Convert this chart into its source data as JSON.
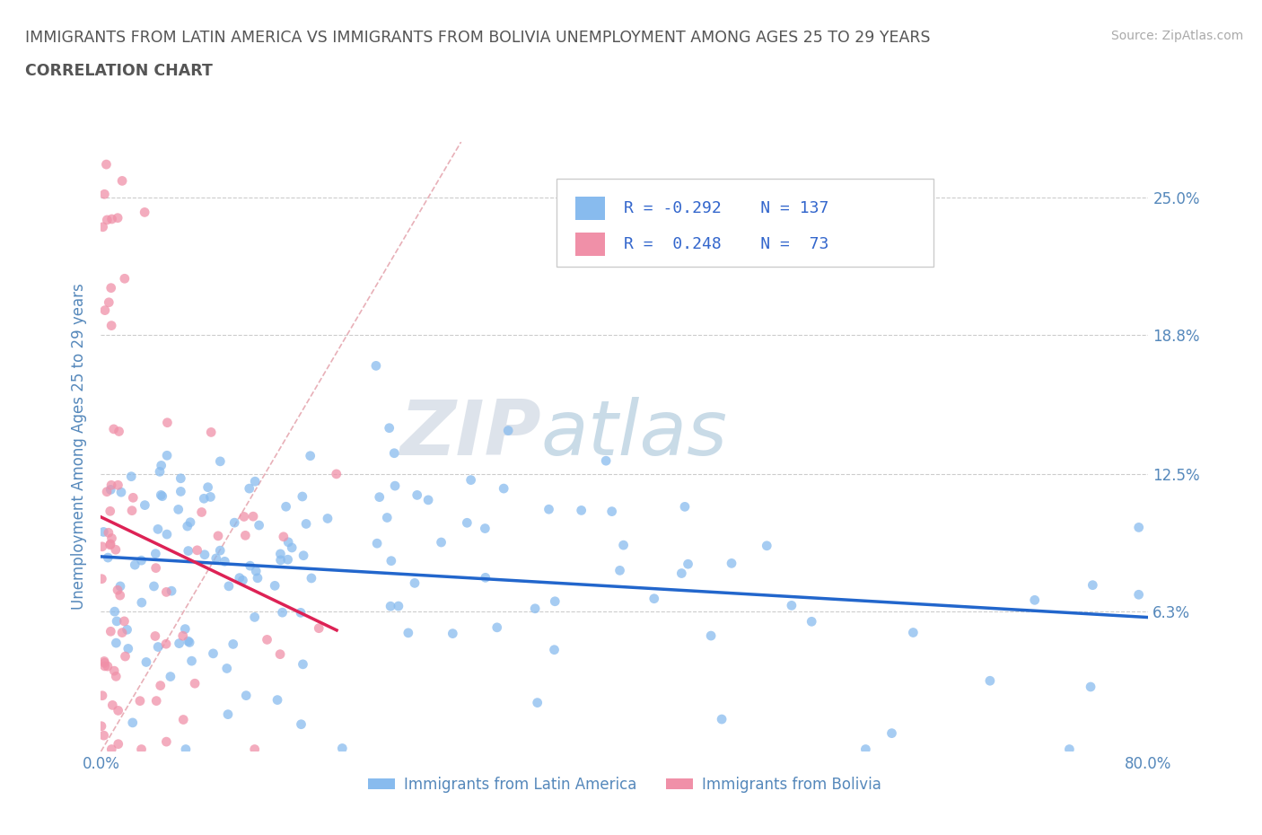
{
  "title_line1": "IMMIGRANTS FROM LATIN AMERICA VS IMMIGRANTS FROM BOLIVIA UNEMPLOYMENT AMONG AGES 25 TO 29 YEARS",
  "title_line2": "CORRELATION CHART",
  "source": "Source: ZipAtlas.com",
  "ylabel": "Unemployment Among Ages 25 to 29 years",
  "xlim": [
    0.0,
    0.8
  ],
  "ylim": [
    0.0,
    0.275
  ],
  "xticks": [
    0.0,
    0.1,
    0.2,
    0.3,
    0.4,
    0.5,
    0.6,
    0.7,
    0.8
  ],
  "xticklabels": [
    "0.0%",
    "",
    "",
    "",
    "",
    "",
    "",
    "",
    "80.0%"
  ],
  "ytick_positions": [
    0.0,
    0.063,
    0.125,
    0.188,
    0.25
  ],
  "ytick_labels": [
    "",
    "6.3%",
    "12.5%",
    "18.8%",
    "25.0%"
  ],
  "grid_color": "#cccccc",
  "background_color": "#ffffff",
  "scatter_latin_color": "#88bbee",
  "scatter_bolivia_color": "#f090a8",
  "trendline_latin_color": "#2266cc",
  "trendline_bolivia_color": "#dd2255",
  "identity_line_color": "#e8b0b8",
  "R_latin": -0.292,
  "N_latin": 137,
  "R_bolivia": 0.248,
  "N_bolivia": 73,
  "legend_label_latin": "Immigrants from Latin America",
  "legend_label_bolivia": "Immigrants from Bolivia",
  "watermark_zip": "ZIP",
  "watermark_atlas": "atlas",
  "title_color": "#555555",
  "axis_label_color": "#5588bb",
  "legend_R_color": "#3366cc"
}
